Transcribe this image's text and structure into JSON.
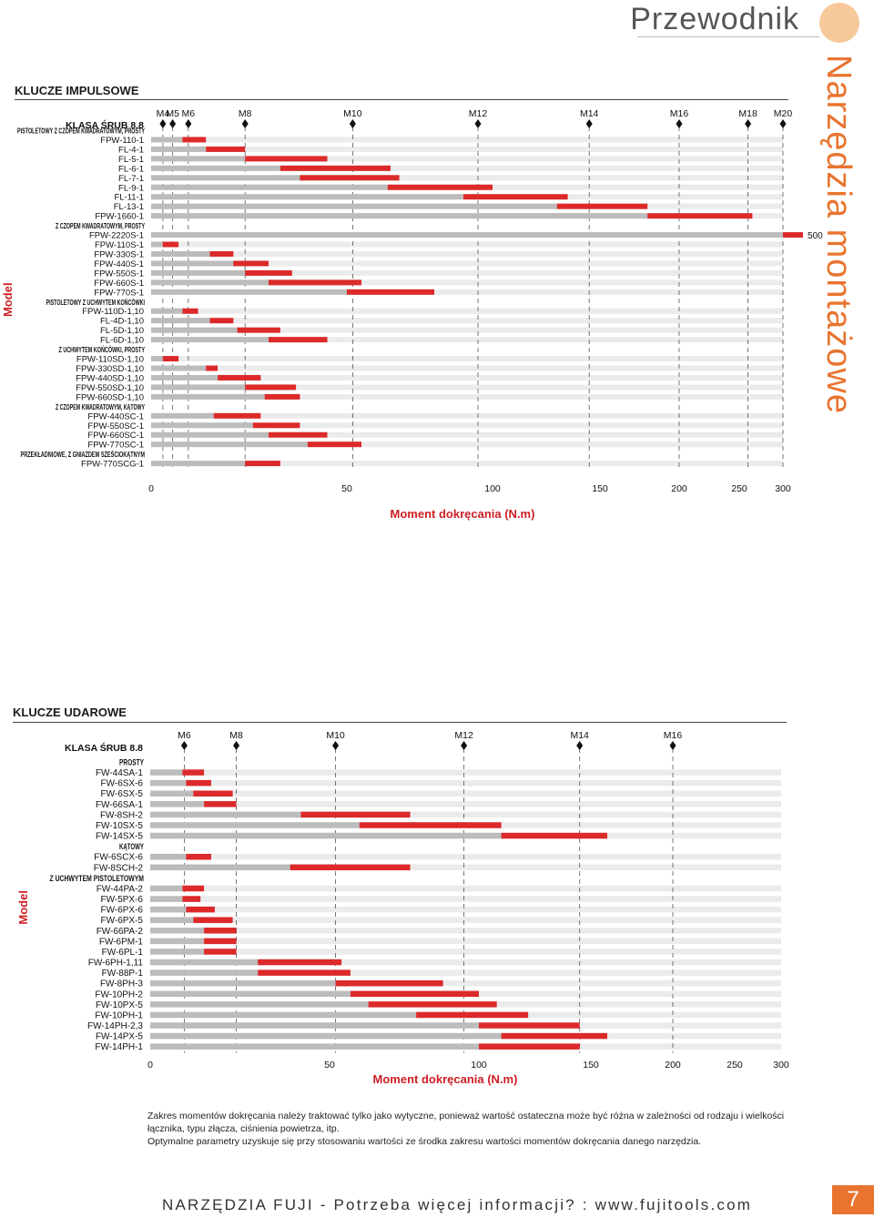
{
  "header": {
    "title": "Przewodnik",
    "side_title": "Narzędzia montażowe"
  },
  "footer": {
    "text": "NARZĘDZIA FUJI - Potrzeba więcej informacji? : www.fujitools.com",
    "page_number": "7"
  },
  "note": {
    "line1": "Zakres momentów dokręcania należy traktować tylko jako wytyczne, ponieważ wartość ostateczna może być różna w zależności od rodzaju i wielkości łącznika, typu złącza, ciśnienia powietrza, itp.",
    "line2": "Optymalne parametry uzyskuje się przy stosowaniu wartości ze środka zakresu wartości momentów dokręcania danego narzędzia."
  },
  "colors": {
    "bar_range": "#dc2a2a",
    "bar_base": "#bcbcbd",
    "track": "#ebebec",
    "accent": "#cc1f24",
    "orange": "#e8742f"
  },
  "chart_data": [
    {
      "type": "bar",
      "section_title": "KLUCZE IMPULSOWE",
      "class_label": "KLASA ŚRUB 8.8",
      "model_label": "Model",
      "xlabel": "Moment dokręcania (N.m)",
      "xticks": [
        "0",
        "50",
        "100",
        "150",
        "200",
        "250",
        "300"
      ],
      "extra_label": "500",
      "bolts": [
        "M4",
        "M5",
        "M6",
        "M8",
        "M10",
        "M12",
        "M14",
        "M16",
        "M18",
        "M20"
      ],
      "bolt_torque": [
        3,
        5.5,
        9.5,
        24,
        52,
        95,
        145,
        200,
        260,
        300
      ],
      "rows": [
        {
          "kind": "group",
          "label": "PISTOLETOWY Z CZOPEM KWADRATOWYM, PROSTY"
        },
        {
          "kind": "item",
          "label": "FPW-110-1",
          "range": [
            8,
            14
          ]
        },
        {
          "kind": "item",
          "label": "FL-4-1",
          "range": [
            14,
            24
          ]
        },
        {
          "kind": "item",
          "label": "FL-5-1",
          "range": [
            24,
            45
          ]
        },
        {
          "kind": "item",
          "label": "FL-6-1",
          "range": [
            33,
            65
          ]
        },
        {
          "kind": "item",
          "label": "FL-7-1",
          "range": [
            38,
            68
          ]
        },
        {
          "kind": "item",
          "label": "FL-9-1",
          "range": [
            64,
            100
          ]
        },
        {
          "kind": "item",
          "label": "FL-11-1",
          "range": [
            90,
            135
          ]
        },
        {
          "kind": "item",
          "label": "FL-13-1",
          "range": [
            130,
            180
          ]
        },
        {
          "kind": "item",
          "label": "FPW-1660-1",
          "range": [
            180,
            265
          ]
        },
        {
          "kind": "group",
          "label": "Z CZOPEM KWADRATOWYM, PROSTY"
        },
        {
          "kind": "item",
          "label": "FPW-2220S-1",
          "range": [
            300,
            500
          ]
        },
        {
          "kind": "item",
          "label": "FPW-110S-1",
          "range": [
            3,
            7
          ]
        },
        {
          "kind": "item",
          "label": "FPW-330S-1",
          "range": [
            15,
            21
          ]
        },
        {
          "kind": "item",
          "label": "FPW-440S-1",
          "range": [
            21,
            30
          ]
        },
        {
          "kind": "item",
          "label": "FPW-550S-1",
          "range": [
            24,
            36
          ]
        },
        {
          "kind": "item",
          "label": "FPW-660S-1",
          "range": [
            30,
            55
          ]
        },
        {
          "kind": "item",
          "label": "FPW-770S-1",
          "range": [
            50,
            80
          ]
        },
        {
          "kind": "group",
          "label": "PISTOLETOWY Z UCHWYTEM KOŃCÓWKI"
        },
        {
          "kind": "item",
          "label": "FPW-110D-1,10",
          "range": [
            8,
            12
          ]
        },
        {
          "kind": "item",
          "label": "FL-4D-1,10",
          "range": [
            15,
            21
          ]
        },
        {
          "kind": "item",
          "label": "FL-5D-1,10",
          "range": [
            22,
            33
          ]
        },
        {
          "kind": "item",
          "label": "FL-6D-1,10",
          "range": [
            30,
            45
          ]
        },
        {
          "kind": "group",
          "label": "Z UCHWYTEM KOŃCÓWKI, PROSTY"
        },
        {
          "kind": "item",
          "label": "FPW-110SD-1,10",
          "range": [
            3,
            7
          ]
        },
        {
          "kind": "item",
          "label": "FPW-330SD-1,10",
          "range": [
            14,
            17
          ]
        },
        {
          "kind": "item",
          "label": "FPW-440SD-1,10",
          "range": [
            17,
            28
          ]
        },
        {
          "kind": "item",
          "label": "FPW-550SD-1,10",
          "range": [
            24,
            37
          ]
        },
        {
          "kind": "item",
          "label": "FPW-660SD-1,10",
          "range": [
            29,
            38
          ]
        },
        {
          "kind": "group",
          "label": "Z CZOPEM KWADRATOWYM, KĄTOWY"
        },
        {
          "kind": "item",
          "label": "FPW-440SC-1",
          "range": [
            16,
            28
          ]
        },
        {
          "kind": "item",
          "label": "FPW-550SC-1",
          "range": [
            26,
            38
          ]
        },
        {
          "kind": "item",
          "label": "FPW-660SC-1",
          "range": [
            30,
            45
          ]
        },
        {
          "kind": "item",
          "label": "FPW-770SC-1",
          "range": [
            40,
            55
          ]
        },
        {
          "kind": "group",
          "label": "PRZEKŁADNIOWE, Z GNIAZDEM SZEŚCIOKĄTNYM"
        },
        {
          "kind": "item",
          "label": "FPW-770SCG-1",
          "range": [
            24,
            33
          ]
        }
      ]
    },
    {
      "type": "bar",
      "section_title": "KLUCZE UDAROWE",
      "class_label": "KLASA ŚRUB 8.8",
      "model_label": "Model",
      "xlabel": "Moment dokręcania (N.m)",
      "xticks": [
        "0",
        "50",
        "100",
        "150",
        "200",
        "250",
        "300"
      ],
      "bolts": [
        "M6",
        "M8",
        "M10",
        "M12",
        "M14",
        "M16"
      ],
      "bolt_torque": [
        9.5,
        24,
        52,
        95,
        145,
        200
      ],
      "rows": [
        {
          "kind": "group",
          "label": "PROSTY"
        },
        {
          "kind": "item",
          "label": "FW-44SA-1",
          "range": [
            9,
            15
          ]
        },
        {
          "kind": "item",
          "label": "FW-6SX-6",
          "range": [
            10,
            17
          ]
        },
        {
          "kind": "item",
          "label": "FW-6SX-5",
          "range": [
            12,
            23
          ]
        },
        {
          "kind": "item",
          "label": "FW-66SA-1",
          "range": [
            15,
            24
          ]
        },
        {
          "kind": "item",
          "label": "FW-8SH-2",
          "range": [
            42,
            77
          ]
        },
        {
          "kind": "item",
          "label": "FW-10SX-5",
          "range": [
            60,
            110
          ]
        },
        {
          "kind": "item",
          "label": "FW-14SX-5",
          "range": [
            110,
            160
          ]
        },
        {
          "kind": "group",
          "label": "KĄTOWY"
        },
        {
          "kind": "item",
          "label": "FW-6SCX-6",
          "range": [
            10,
            17
          ]
        },
        {
          "kind": "item",
          "label": "FW-8SCH-2",
          "range": [
            39,
            77
          ]
        },
        {
          "kind": "group",
          "label": "Z UCHWYTEM PISTOLETOWYM"
        },
        {
          "kind": "item",
          "label": "FW-44PA-2",
          "range": [
            9,
            15
          ]
        },
        {
          "kind": "item",
          "label": "FW-5PX-6",
          "range": [
            9,
            14
          ]
        },
        {
          "kind": "item",
          "label": "FW-6PX-6",
          "range": [
            10,
            18
          ]
        },
        {
          "kind": "item",
          "label": "FW-6PX-5",
          "range": [
            12,
            23
          ]
        },
        {
          "kind": "item",
          "label": "FW-66PA-2",
          "range": [
            15,
            24
          ]
        },
        {
          "kind": "item",
          "label": "FW-6PM-1",
          "range": [
            15,
            24
          ]
        },
        {
          "kind": "item",
          "label": "FW-6PL-1",
          "range": [
            15,
            24
          ]
        },
        {
          "kind": "item",
          "label": "FW-6PH-1,11",
          "range": [
            30,
            54
          ]
        },
        {
          "kind": "item",
          "label": "FW-88P-1",
          "range": [
            30,
            57
          ]
        },
        {
          "kind": "item",
          "label": "FW-8PH-3",
          "range": [
            52,
            88
          ]
        },
        {
          "kind": "item",
          "label": "FW-10PH-2",
          "range": [
            57,
            100
          ]
        },
        {
          "kind": "item",
          "label": "FW-10PX-5",
          "range": [
            63,
            108
          ]
        },
        {
          "kind": "item",
          "label": "FW-10PH-1",
          "range": [
            79,
            122
          ]
        },
        {
          "kind": "item",
          "label": "FW-14PH-2,3",
          "range": [
            100,
            145
          ]
        },
        {
          "kind": "item",
          "label": "FW-14PX-5",
          "range": [
            110,
            160
          ]
        },
        {
          "kind": "item",
          "label": "FW-14PH-1",
          "range": [
            100,
            145
          ]
        }
      ]
    }
  ]
}
